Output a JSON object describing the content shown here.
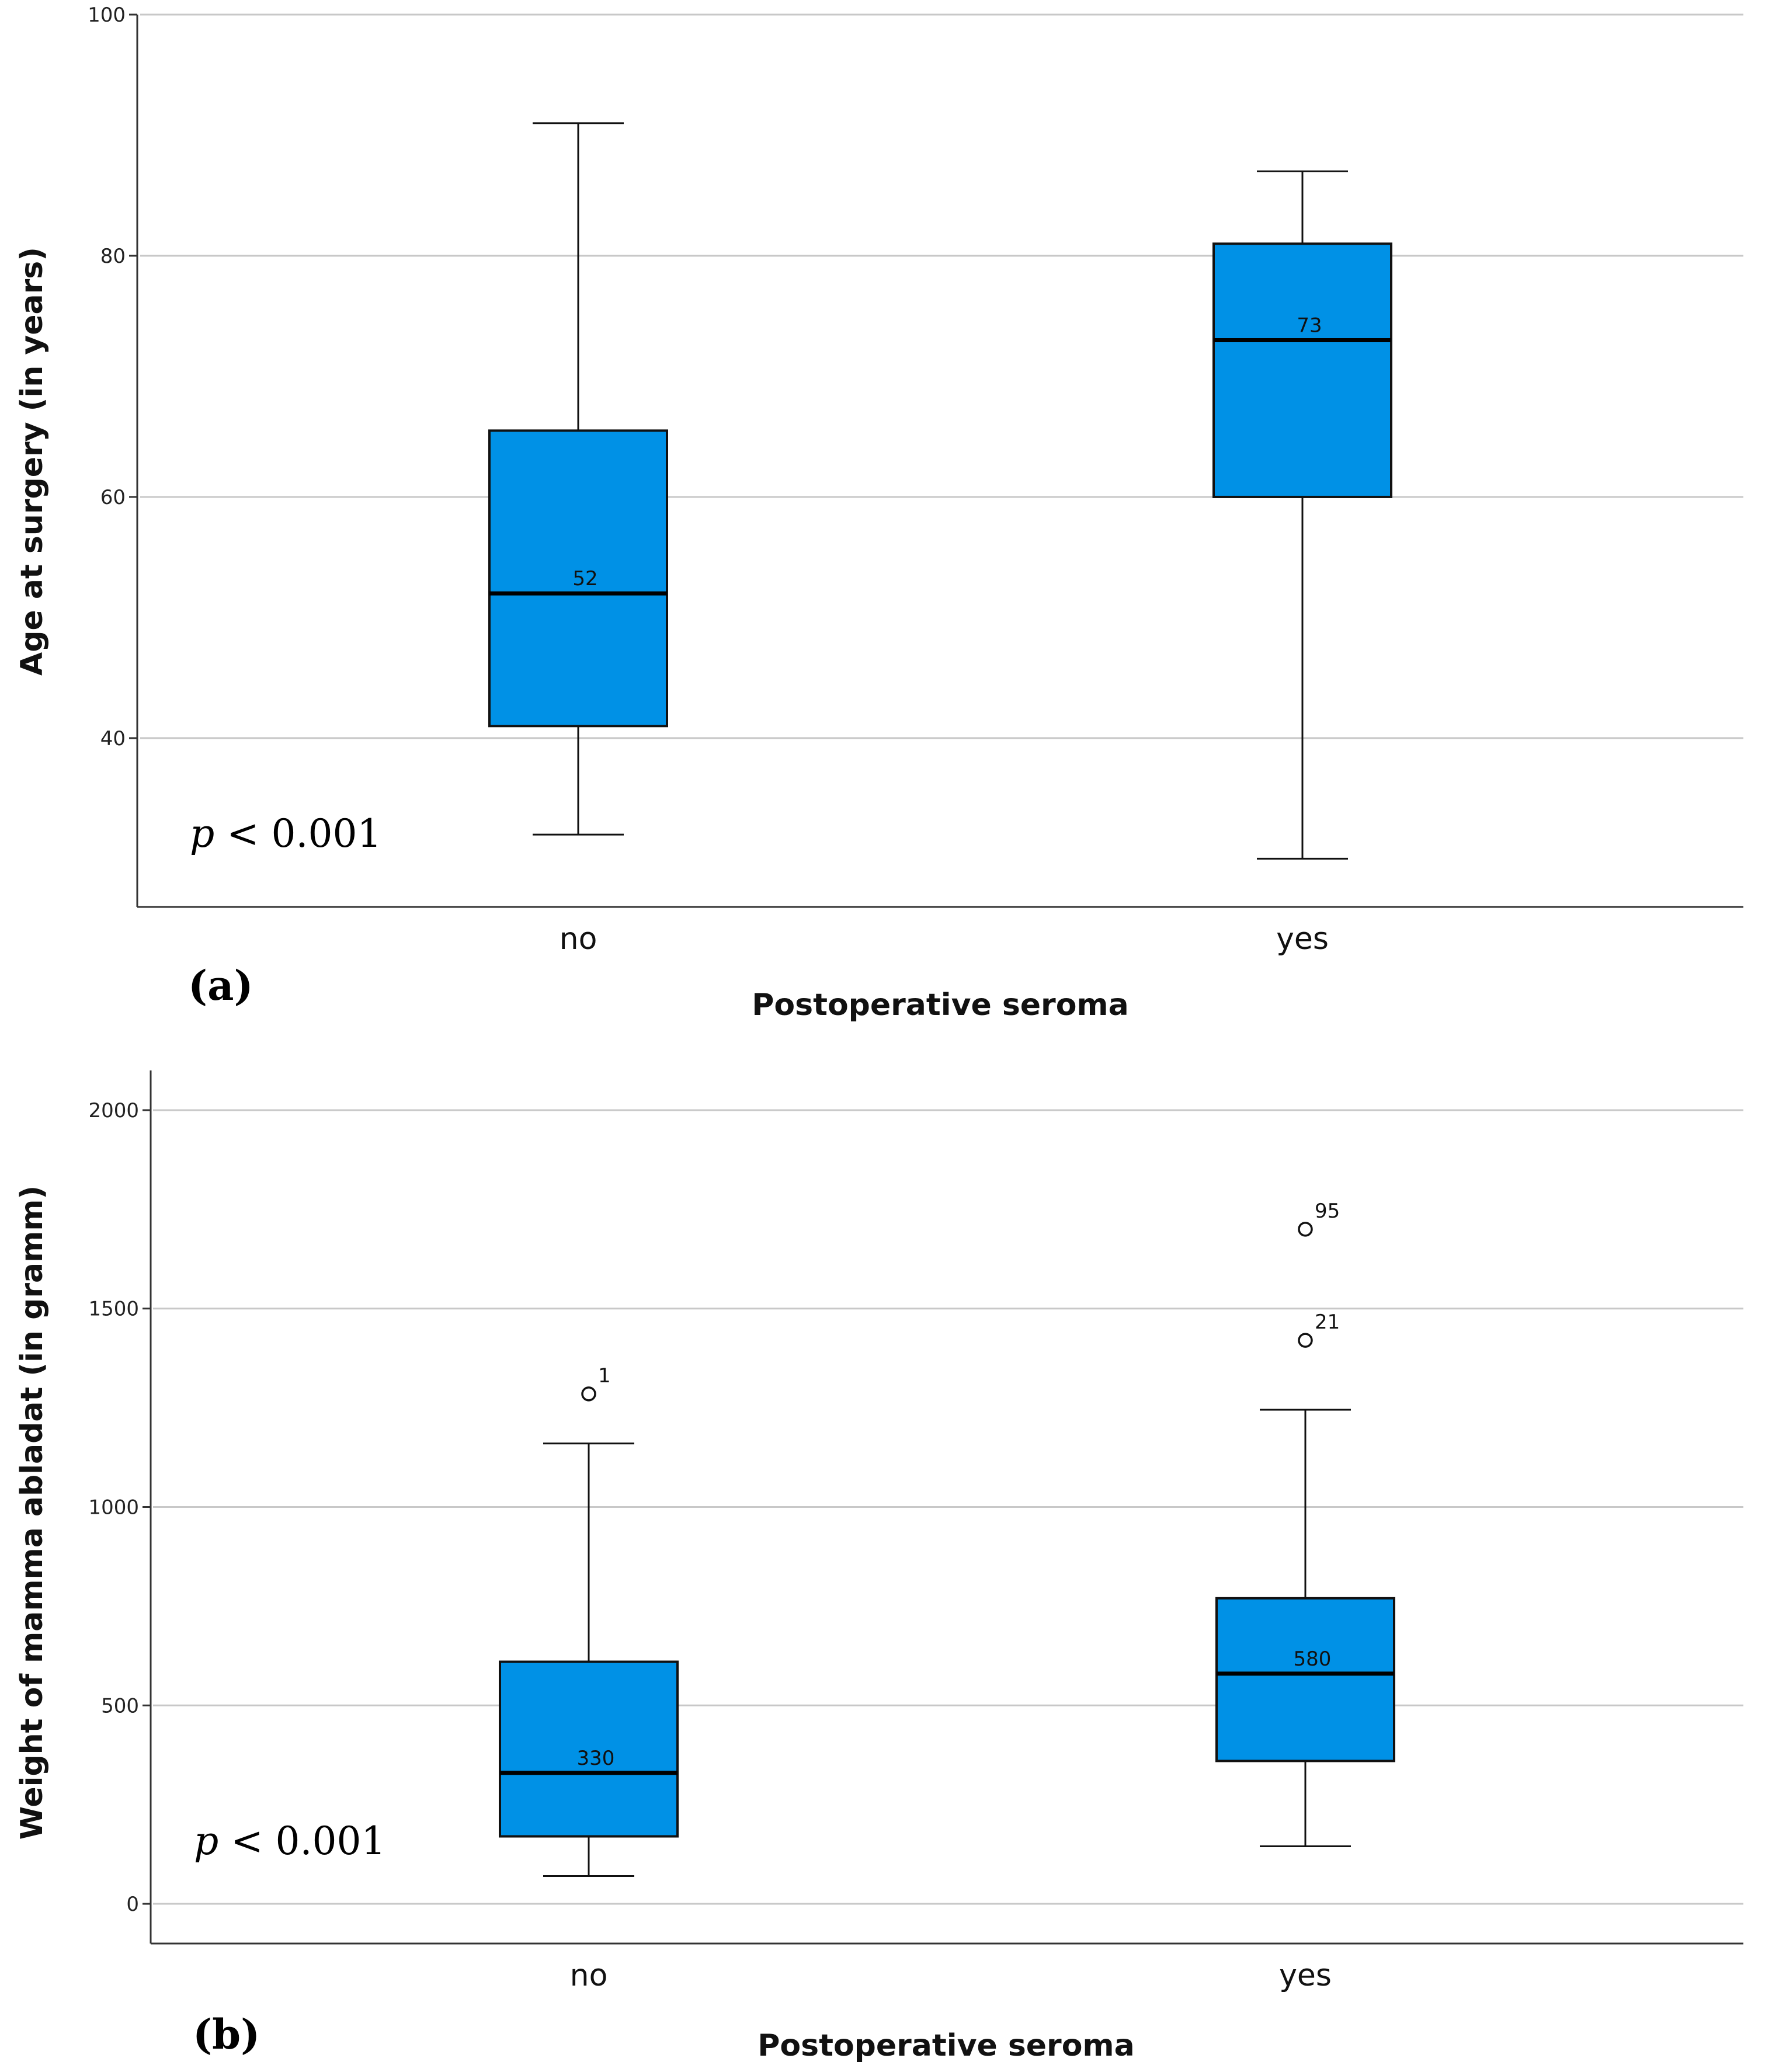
{
  "colors": {
    "box_fill": "#0091E6",
    "box_stroke": "#111111",
    "grid": "#c8c8c8",
    "axis": "#333333"
  },
  "chart_data": [
    {
      "type": "boxplot",
      "panel_label": "(a)",
      "xlabel": "Postoperative seroma",
      "ylabel": "Age at surgery (in years)",
      "ylim": [
        26,
        100
      ],
      "yticks": [
        40,
        60,
        80,
        100
      ],
      "grid": true,
      "annotation_italic": "p",
      "annotation_rest": " < 0.001",
      "categories": [
        "no",
        "yes"
      ],
      "boxes": [
        {
          "category": "no",
          "whisker_low": 32,
          "q1": 41,
          "median": 52,
          "q3": 65.5,
          "whisker_high": 91,
          "median_label": "52",
          "outliers": []
        },
        {
          "category": "yes",
          "whisker_low": 30,
          "q1": 60,
          "median": 73,
          "q3": 81,
          "whisker_high": 87,
          "median_label": "73",
          "outliers": []
        }
      ]
    },
    {
      "type": "boxplot",
      "panel_label": "(b)",
      "xlabel": "Postoperative seroma",
      "ylabel": "Weight of mamma abladat (in gramm)",
      "ylim": [
        -100,
        2100
      ],
      "yticks": [
        0,
        500,
        1000,
        1500,
        2000
      ],
      "grid": true,
      "annotation_italic": "p",
      "annotation_rest": " < 0.001",
      "categories": [
        "no",
        "yes"
      ],
      "boxes": [
        {
          "category": "no",
          "whisker_low": 70,
          "q1": 170,
          "median": 330,
          "q3": 610,
          "whisker_high": 1160,
          "median_label": "330",
          "outliers": [
            {
              "value": 1285,
              "label": "1"
            }
          ]
        },
        {
          "category": "yes",
          "whisker_low": 145,
          "q1": 360,
          "median": 580,
          "q3": 770,
          "whisker_high": 1245,
          "median_label": "580",
          "outliers": [
            {
              "value": 1420,
              "label": "21"
            },
            {
              "value": 1700,
              "label": "95"
            }
          ]
        }
      ]
    }
  ]
}
